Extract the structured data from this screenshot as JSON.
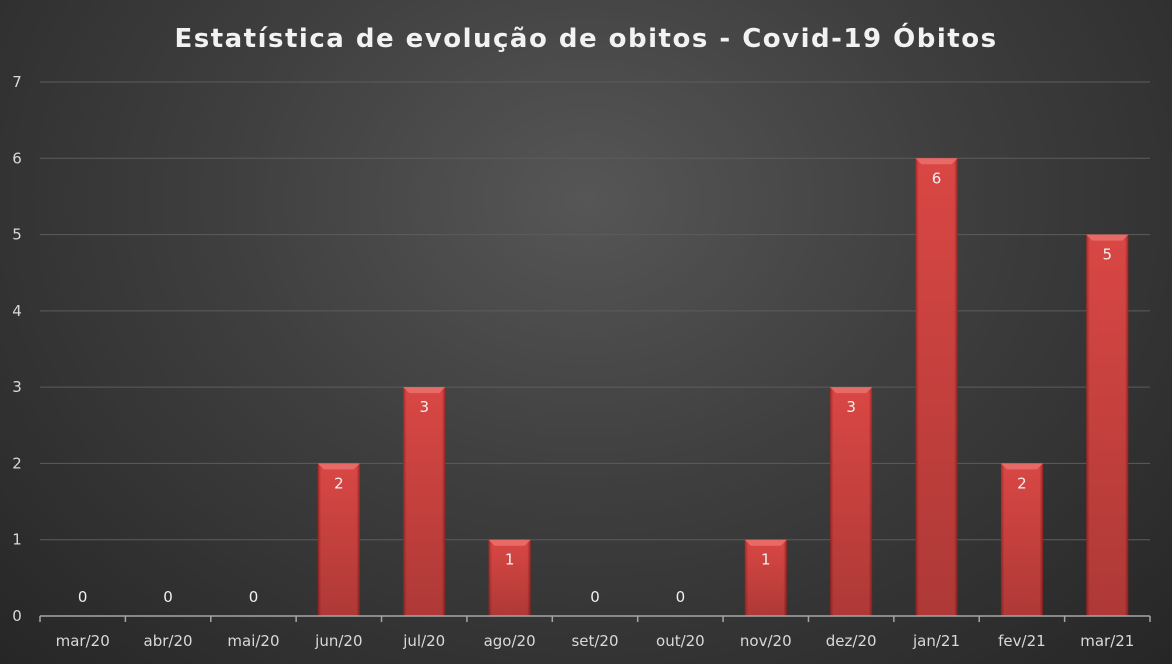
{
  "chart_data": {
    "type": "bar",
    "title": "Estatística de evolução de obitos - Covid-19 Óbitos",
    "categories": [
      "mar/20",
      "abr/20",
      "mai/20",
      "jun/20",
      "jul/20",
      "ago/20",
      "set/20",
      "out/20",
      "nov/20",
      "dez/20",
      "jan/21",
      "fev/21",
      "mar/21"
    ],
    "values": [
      0,
      0,
      0,
      2,
      3,
      1,
      0,
      0,
      1,
      3,
      6,
      2,
      5
    ],
    "xlabel": "",
    "ylabel": "",
    "ylim": [
      0,
      7
    ],
    "yticks": [
      "0",
      "1",
      "2",
      "3",
      "4",
      "5",
      "6",
      "7"
    ],
    "grid": true,
    "data_labels": true,
    "bar_color": "#d64541",
    "background": "#3a3a3a"
  }
}
